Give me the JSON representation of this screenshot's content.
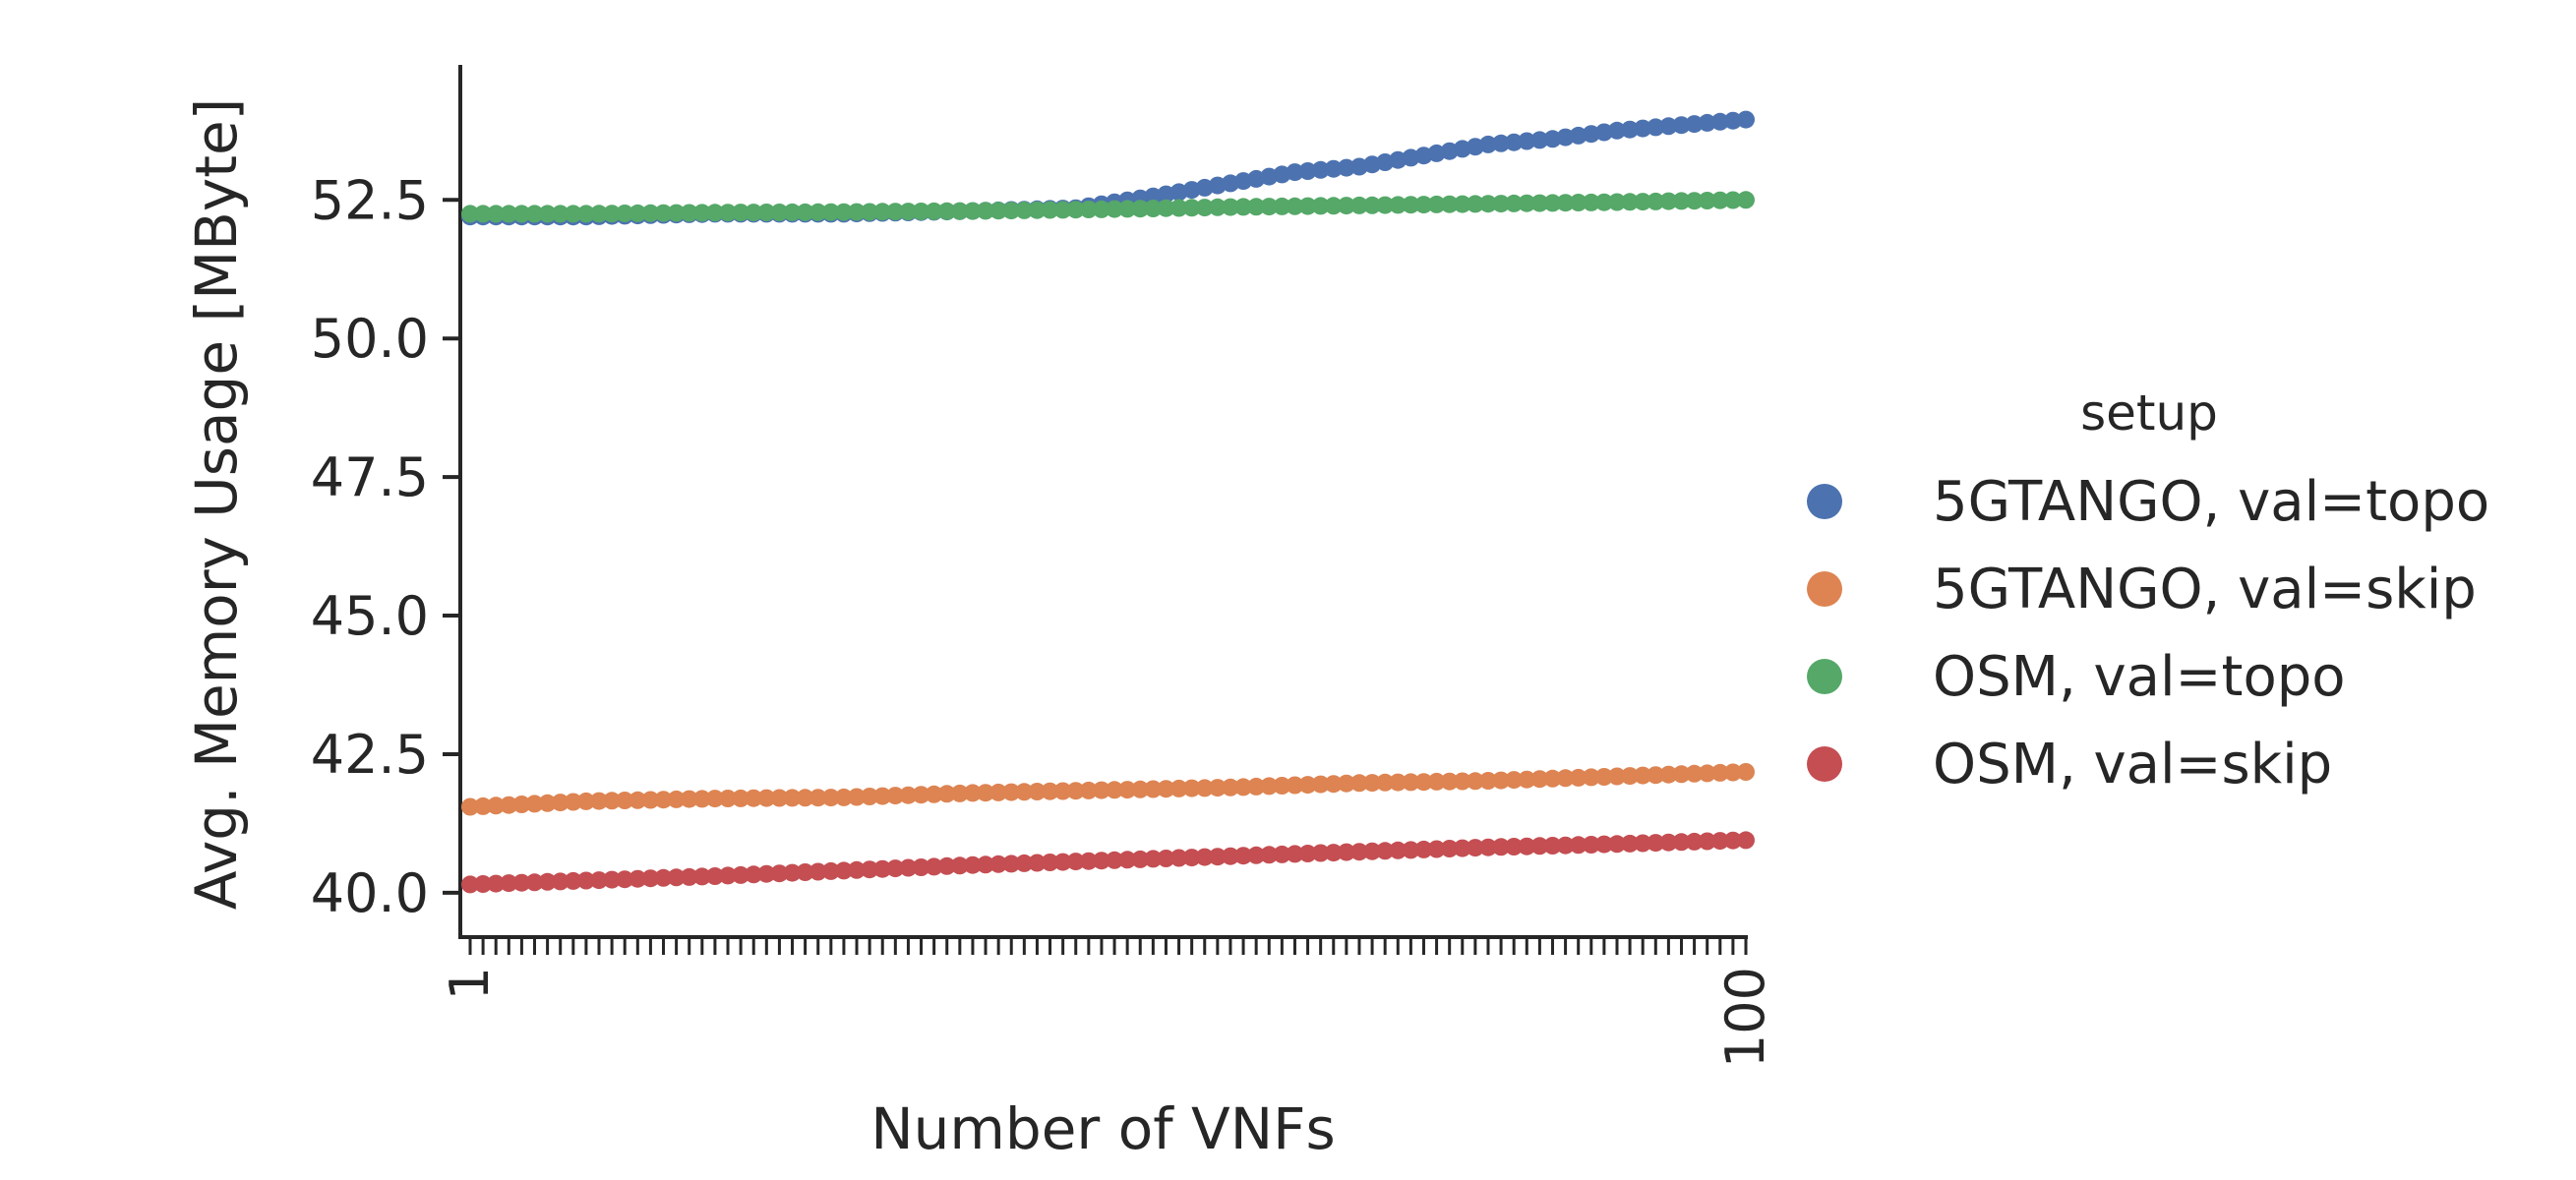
{
  "chart_data": {
    "type": "scatter",
    "title": "",
    "xlabel": "Number of VNFs",
    "ylabel": "Avg. Memory Usage [MByte]",
    "x_range": [
      1,
      100
    ],
    "x_ticks_labeled": [
      "1",
      "100"
    ],
    "y_ticks": [
      "40.0",
      "42.5",
      "45.0",
      "47.5",
      "50.0",
      "52.5"
    ],
    "ylim": [
      39.2,
      54.9
    ],
    "grid": false,
    "legend": {
      "title": "setup",
      "placement": "right"
    },
    "series": [
      {
        "name": "5GTANGO, val=topo",
        "color": "#4c72b0",
        "points": [
          [
            1,
            52.2
          ],
          [
            10,
            52.2
          ],
          [
            20,
            52.25
          ],
          [
            30,
            52.25
          ],
          [
            40,
            52.3
          ],
          [
            48,
            52.35
          ],
          [
            55,
            52.6
          ],
          [
            60,
            52.8
          ],
          [
            65,
            53.0
          ],
          [
            70,
            53.1
          ],
          [
            75,
            53.3
          ],
          [
            80,
            53.5
          ],
          [
            85,
            53.6
          ],
          [
            90,
            53.75
          ],
          [
            95,
            53.85
          ],
          [
            100,
            53.95
          ]
        ]
      },
      {
        "name": "5GTANGO, val=skip",
        "color": "#dd8452",
        "points": [
          [
            1,
            41.55
          ],
          [
            10,
            41.65
          ],
          [
            20,
            41.7
          ],
          [
            30,
            41.72
          ],
          [
            40,
            41.8
          ],
          [
            50,
            41.85
          ],
          [
            60,
            41.9
          ],
          [
            70,
            41.98
          ],
          [
            80,
            42.02
          ],
          [
            90,
            42.1
          ],
          [
            100,
            42.18
          ]
        ]
      },
      {
        "name": "OSM, val=topo",
        "color": "#55a868",
        "points": [
          [
            1,
            52.25
          ],
          [
            10,
            52.25
          ],
          [
            20,
            52.27
          ],
          [
            30,
            52.28
          ],
          [
            40,
            52.3
          ],
          [
            50,
            52.33
          ],
          [
            60,
            52.37
          ],
          [
            70,
            52.4
          ],
          [
            80,
            52.43
          ],
          [
            90,
            52.46
          ],
          [
            100,
            52.5
          ]
        ]
      },
      {
        "name": "OSM, val=skip",
        "color": "#c44e52",
        "points": [
          [
            1,
            40.15
          ],
          [
            10,
            40.22
          ],
          [
            20,
            40.3
          ],
          [
            30,
            40.4
          ],
          [
            40,
            40.5
          ],
          [
            50,
            40.58
          ],
          [
            60,
            40.66
          ],
          [
            70,
            40.74
          ],
          [
            80,
            40.82
          ],
          [
            90,
            40.88
          ],
          [
            100,
            40.95
          ]
        ]
      }
    ]
  }
}
